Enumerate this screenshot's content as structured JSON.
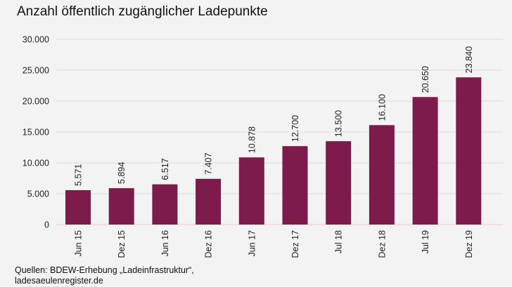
{
  "chart_data": {
    "type": "bar",
    "title": "Anzahl öffentlich zugänglicher Ladepunkte",
    "categories": [
      "Jun 15",
      "Dez 15",
      "Jun 16",
      "Dez 16",
      "Jun 17",
      "Dez 17",
      "Jul 18",
      "Dez 18",
      "Jul 19",
      "Dez 19"
    ],
    "values": [
      5571,
      5894,
      6517,
      7407,
      10878,
      12700,
      13500,
      16100,
      20650,
      23840
    ],
    "data_labels": [
      "5.571",
      "5.894",
      "6.517",
      "7.407",
      "10.878",
      "12.700",
      "13.500",
      "16.100",
      "20.650",
      "23.840"
    ],
    "yticks": [
      0,
      5000,
      10000,
      15000,
      20000,
      25000,
      30000
    ],
    "ytick_labels": [
      "0",
      "5.000",
      "10.000",
      "15.000",
      "20.000",
      "25.000",
      "30.000"
    ],
    "ylim": [
      0,
      30000
    ],
    "xlabel": "",
    "ylabel": "",
    "grid": true,
    "bar_color": "#7d1c4a",
    "background": "#f3f3f3"
  },
  "source": {
    "line1": "Quellen: BDEW-Erhebung „Ladeinfrastruktur“,",
    "line2": "ladesaeulenregister.de"
  }
}
